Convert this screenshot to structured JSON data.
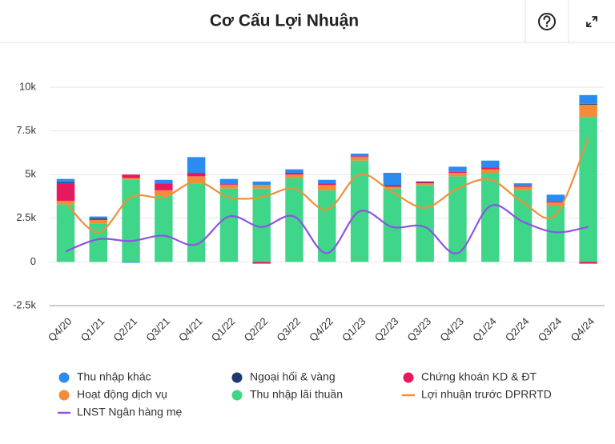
{
  "chart_data": {
    "type": "bar",
    "title": "Cơ Cấu Lợi Nhuận",
    "categories": [
      "Q4/20",
      "Q1/21",
      "Q2/21",
      "Q3/21",
      "Q4/21",
      "Q1/22",
      "Q2/22",
      "Q3/22",
      "Q4/22",
      "Q1/23",
      "Q2/23",
      "Q3/23",
      "Q4/23",
      "Q1/24",
      "Q2/24",
      "Q3/24",
      "Q4/24"
    ],
    "series": [
      {
        "name": "Thu nhập khác",
        "type": "bar",
        "color": "#2a8cf0",
        "values": [
          200,
          100,
          -50,
          200,
          900,
          300,
          200,
          200,
          200,
          150,
          700,
          0,
          300,
          400,
          150,
          400,
          500
        ]
      },
      {
        "name": "Ngoại hối & vàng",
        "type": "bar",
        "color": "#1d3a6e",
        "values": [
          50,
          50,
          0,
          0,
          0,
          0,
          0,
          0,
          0,
          0,
          50,
          50,
          0,
          0,
          0,
          0,
          50
        ]
      },
      {
        "name": "Chứng khoán KD & ĐT",
        "type": "bar",
        "color": "#e8185f",
        "values": [
          1000,
          50,
          200,
          400,
          200,
          50,
          -100,
          100,
          100,
          50,
          50,
          50,
          50,
          100,
          50,
          50,
          -100
        ]
      },
      {
        "name": "Hoạt động dịch vụ",
        "type": "bar",
        "color": "#f28c38",
        "values": [
          200,
          200,
          100,
          300,
          400,
          200,
          200,
          200,
          300,
          200,
          100,
          100,
          200,
          200,
          200,
          200,
          700
        ]
      },
      {
        "name": "Thu nhập lãi thuần",
        "type": "bar",
        "color": "#3fd68a",
        "values": [
          3300,
          2200,
          4700,
          3800,
          4500,
          4200,
          4200,
          4800,
          4100,
          5800,
          4200,
          4400,
          4900,
          5100,
          4100,
          3200,
          8300
        ]
      },
      {
        "name": "Lợi nhuận trước DPRRTD",
        "type": "line",
        "color": "#ef8f3a",
        "values": [
          3400,
          1700,
          3700,
          3700,
          4600,
          3700,
          3700,
          4200,
          3000,
          5000,
          4000,
          3100,
          4200,
          4700,
          3400,
          2700,
          7100
        ]
      },
      {
        "name": "LNST Ngân hàng mẹ",
        "type": "line",
        "color": "#8b55e0",
        "values": [
          600,
          1300,
          1200,
          1500,
          1000,
          2600,
          2000,
          2600,
          500,
          2900,
          2000,
          2000,
          500,
          3200,
          2300,
          1700,
          2000
        ]
      }
    ],
    "ylim": [
      -2500,
      10000
    ],
    "yticks": [
      {
        "value": -2500,
        "label": "-2.5k"
      },
      0,
      {
        "value": 2500,
        "label": "2.5k"
      },
      {
        "value": 5000,
        "label": "5k"
      },
      {
        "value": 7500,
        "label": "7.5k"
      },
      {
        "value": 10000,
        "label": "10k"
      }
    ],
    "grid": true
  }
}
